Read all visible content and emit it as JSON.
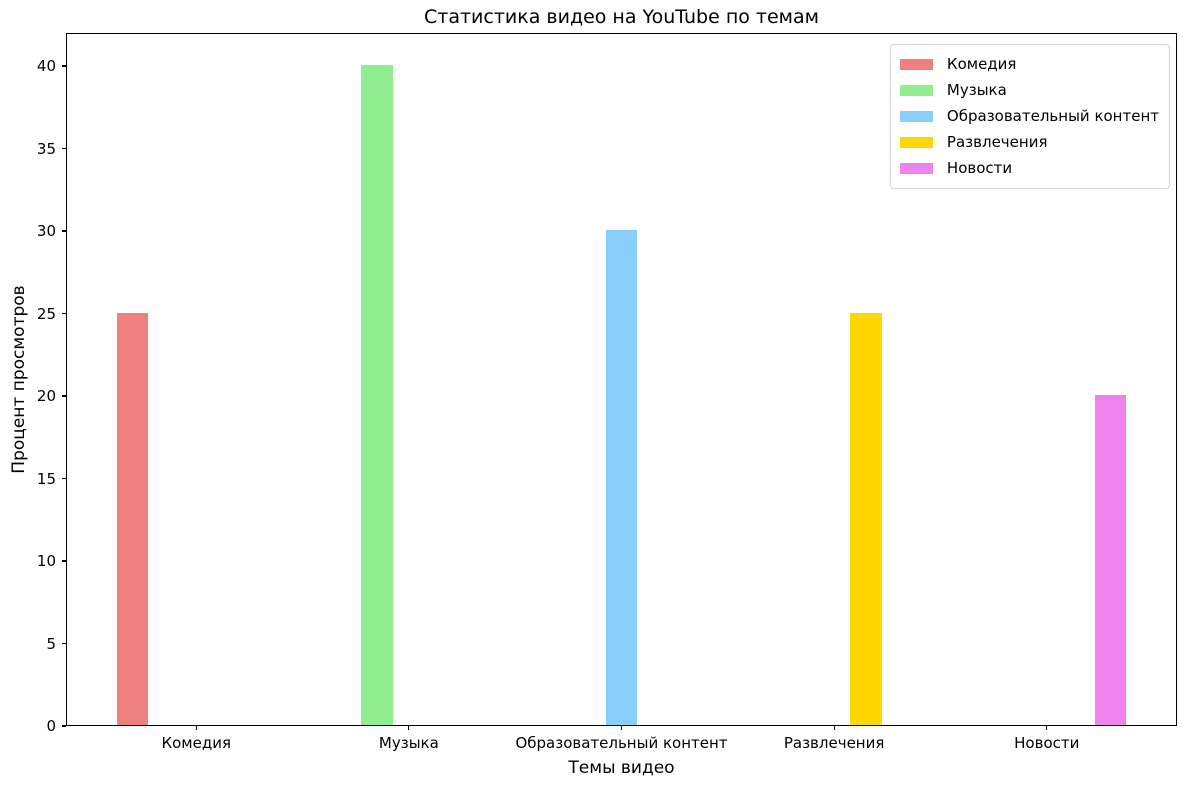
{
  "chart_data": {
    "type": "bar",
    "title": "Статистика видео на YouTube по темам",
    "xlabel": "Темы видео",
    "ylabel": "Процент просмотров",
    "categories": [
      "Комедия",
      "Музыка",
      "Образовательный контент",
      "Развлечения",
      "Новости"
    ],
    "values": [
      25,
      40,
      30,
      25,
      20
    ],
    "series": [
      {
        "name": "Комедия",
        "color": "#f08080",
        "category_index": 0,
        "offset": -0.3,
        "value": 25
      },
      {
        "name": "Музыка",
        "color": "#90ee90",
        "category_index": 1,
        "offset": -0.15,
        "value": 40
      },
      {
        "name": "Образовательный контент",
        "color": "#87cefa",
        "category_index": 2,
        "offset": 0.0,
        "value": 30
      },
      {
        "name": "Развлечения",
        "color": "#ffd700",
        "category_index": 3,
        "offset": 0.15,
        "value": 25
      },
      {
        "name": "Новости",
        "color": "#ee82ee",
        "category_index": 4,
        "offset": 0.3,
        "value": 20
      }
    ],
    "bar_width": 0.15,
    "xlim": [
      -0.6125,
      4.6125
    ],
    "ylim": [
      0,
      42
    ],
    "yticks": [
      0,
      5,
      10,
      15,
      20,
      25,
      30,
      35,
      40
    ],
    "grid": false,
    "legend": {
      "position": "upper right",
      "entries": [
        "Комедия",
        "Музыка",
        "Образовательный контент",
        "Развлечения",
        "Новости"
      ]
    },
    "colors": {
      "spine": "#000000",
      "text": "#000000",
      "background": "#ffffff",
      "legend_border": "#d4d4d4"
    }
  }
}
